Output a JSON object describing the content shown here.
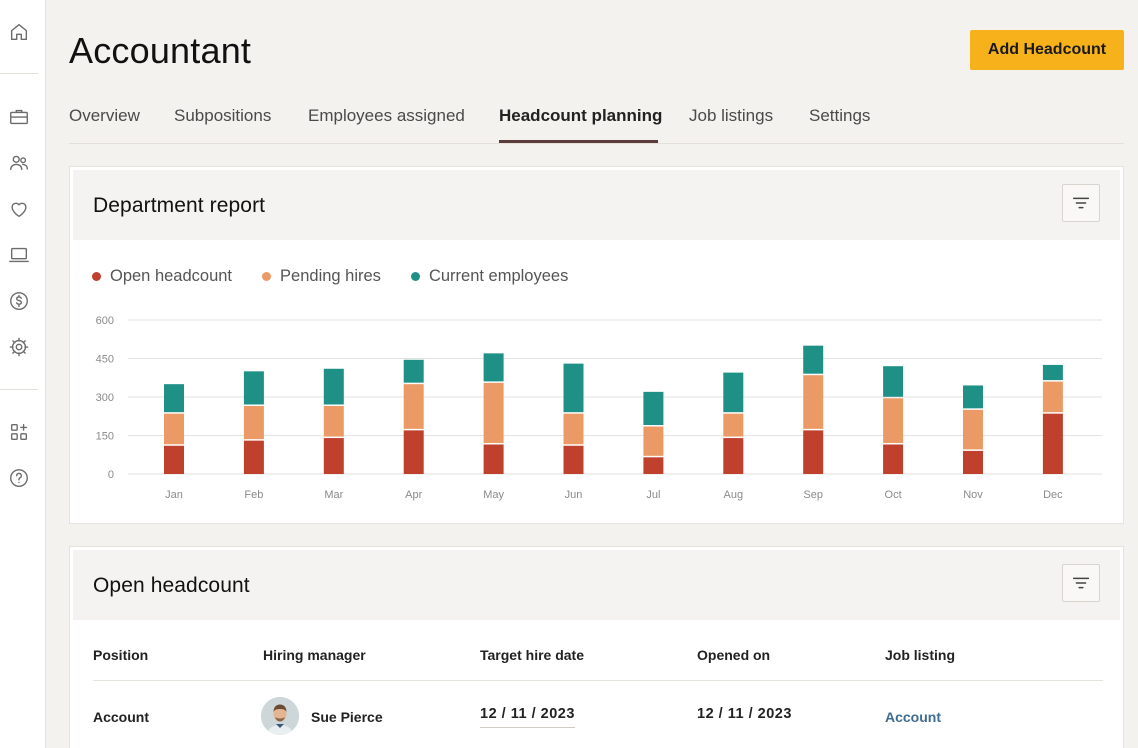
{
  "page": {
    "title": "Accountant",
    "add_button_label": "Add Headcount"
  },
  "sidebar": {
    "icons": [
      "home-icon",
      "briefcase-icon",
      "people-icon",
      "heart-icon",
      "laptop-icon",
      "dollar-icon",
      "settings-gear-icon",
      "apps-add-icon",
      "help-icon"
    ]
  },
  "tabs": [
    {
      "label": "Overview",
      "active": false
    },
    {
      "label": "Subpositions",
      "active": false
    },
    {
      "label": "Employees assigned",
      "active": false
    },
    {
      "label": "Headcount planning",
      "active": true
    },
    {
      "label": "Job listings",
      "active": false
    },
    {
      "label": "Settings",
      "active": false
    }
  ],
  "department_report": {
    "title": "Department report",
    "filter_icon": "filter-icon"
  },
  "colors": {
    "open": "#c0402e",
    "pending": "#eb9a66",
    "current": "#1f9086",
    "accent": "#f7b21b",
    "link": "#3f6c91"
  },
  "chart_data": {
    "type": "bar",
    "stacked": true,
    "categories": [
      "Jan",
      "Feb",
      "Mar",
      "Apr",
      "May",
      "Jun",
      "Jul",
      "Aug",
      "Sep",
      "Oct",
      "Nov",
      "Dec"
    ],
    "series": [
      {
        "name": "Open headcount",
        "values": [
          110,
          130,
          140,
          170,
          115,
          110,
          65,
          140,
          170,
          115,
          90,
          235
        ]
      },
      {
        "name": "Pending hires",
        "values": [
          125,
          135,
          125,
          180,
          240,
          125,
          120,
          95,
          215,
          180,
          160,
          125
        ]
      },
      {
        "name": "Current employees",
        "values": [
          115,
          135,
          145,
          95,
          115,
          195,
          135,
          160,
          115,
          125,
          95,
          65
        ]
      }
    ],
    "yticks": [
      0,
      150,
      300,
      450,
      600
    ],
    "ylim": [
      0,
      600
    ],
    "grid": true,
    "legend_position": "top-left"
  },
  "open_headcount": {
    "title": "Open headcount",
    "filter_icon": "filter-icon",
    "columns": [
      "Position",
      "Hiring manager",
      "Target hire date",
      "Opened on",
      "Job listing"
    ],
    "rows": [
      {
        "position": "Account",
        "hiring_manager": "Sue Pierce",
        "target_hire_date": "12 / 11 / 2023",
        "opened_on": "12 / 11 / 2023",
        "job_listing": "Account"
      }
    ]
  }
}
